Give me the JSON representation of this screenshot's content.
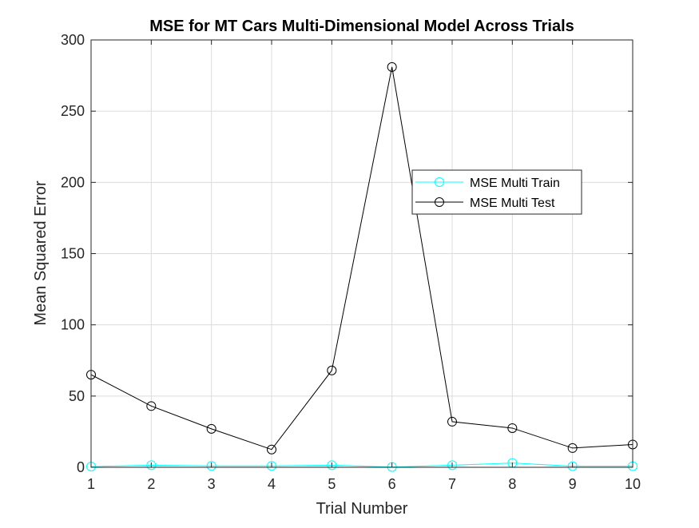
{
  "chart_data": {
    "type": "line",
    "title": "MSE for MT Cars Multi-Dimensional Model Across Trials",
    "xlabel": "Trial Number",
    "ylabel": "Mean Squared Error",
    "x": [
      1,
      2,
      3,
      4,
      5,
      6,
      7,
      8,
      9,
      10
    ],
    "xlim": [
      1,
      10
    ],
    "ylim": [
      0,
      300
    ],
    "xticks": [
      1,
      2,
      3,
      4,
      5,
      6,
      7,
      8,
      9,
      10
    ],
    "yticks": [
      0,
      50,
      100,
      150,
      200,
      250,
      300
    ],
    "grid": true,
    "legend_position": "upper-right-center",
    "series": [
      {
        "name": "MSE Multi Train",
        "color": "#00ffff",
        "marker": "circle",
        "values": [
          0.5,
          1.5,
          1.0,
          1.0,
          1.5,
          0.2,
          1.5,
          3.0,
          0.8,
          0.8
        ]
      },
      {
        "name": "MSE Multi Test",
        "color": "#000000",
        "marker": "circle",
        "values": [
          65,
          43,
          27,
          12.5,
          68,
          281,
          32,
          27.5,
          13.5,
          16
        ]
      }
    ]
  }
}
